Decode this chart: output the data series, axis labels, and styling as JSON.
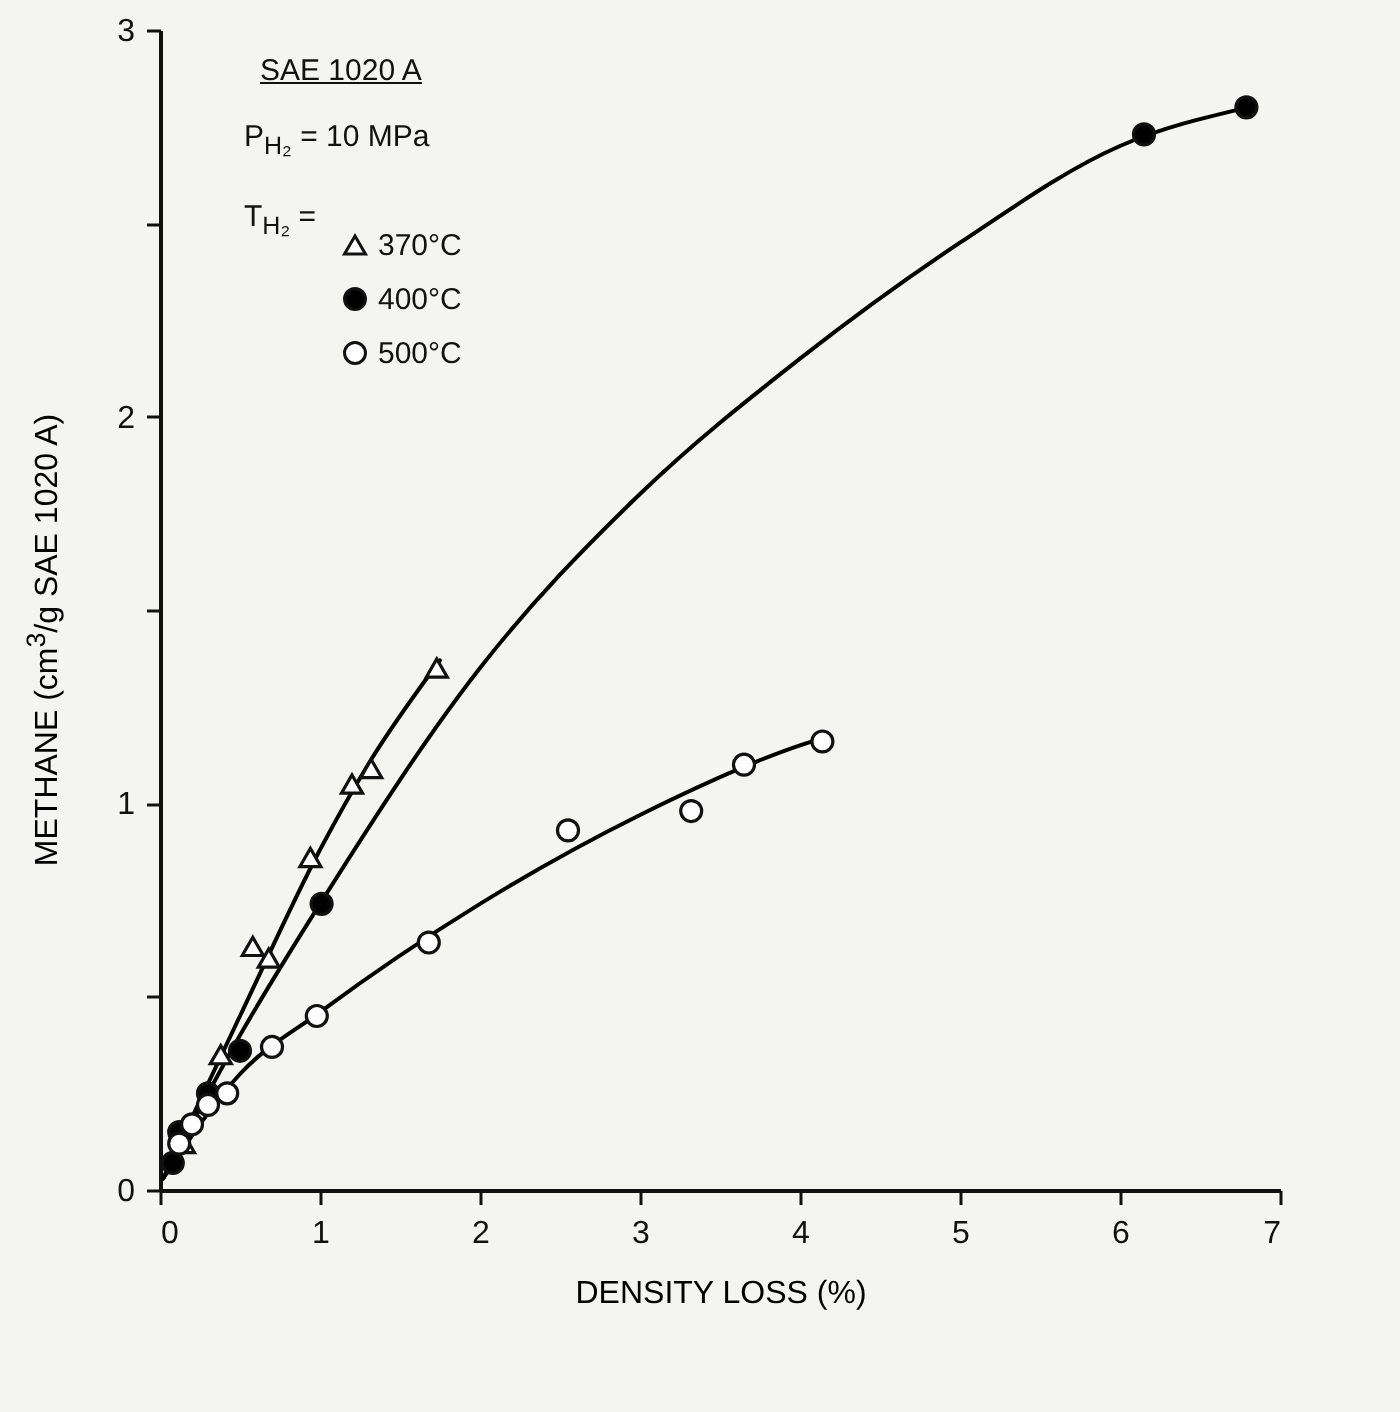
{
  "chart_data": {
    "type": "scatter",
    "xlabel": "DENSITY LOSS (%)",
    "ylabel": "METHANE (cm$^{3}$/g SAE 1020 A)",
    "legend_title": "SAE 1020 A",
    "annotations": [
      "P$_{H₂}$ = 10 MPa",
      "T$_{H₂}$ ="
    ],
    "xlim": [
      0,
      7
    ],
    "xticks": [
      0,
      1,
      2,
      3,
      4,
      5,
      6,
      7
    ],
    "ylim": [
      0,
      3
    ],
    "yticks": [
      0,
      {
        "value": 0.5,
        "label": null
      },
      1,
      {
        "value": 1.5,
        "label": null
      },
      2,
      {
        "value": 2.5,
        "label": null
      },
      3
    ],
    "legend": "top left",
    "grid": false,
    "series": [
      {
        "name": "370°C",
        "type": "scatter",
        "marker": "triangle",
        "color": "#ffffff",
        "x": [
          0.15,
          0.38,
          0.58,
          0.68,
          0.94,
          1.2,
          1.32,
          1.73
        ],
        "values": [
          0.12,
          0.35,
          0.63,
          0.6,
          0.86,
          1.05,
          1.09,
          1.35
        ]
      },
      {
        "name": "400°C",
        "type": "scatter",
        "marker": "circle",
        "color": "#000000",
        "x": [
          0.08,
          0.12,
          0.3,
          0.5,
          1.01,
          6.15,
          6.79
        ],
        "values": [
          0.07,
          0.15,
          0.25,
          0.36,
          0.74,
          2.73,
          2.8
        ]
      },
      {
        "name": "500°C",
        "type": "scatter",
        "marker": "circle",
        "color": "#ffffff",
        "x": [
          0.12,
          0.2,
          0.3,
          0.42,
          0.7,
          0.98,
          1.68,
          2.55,
          3.32,
          3.65,
          4.14
        ],
        "values": [
          0.12,
          0.17,
          0.22,
          0.25,
          0.37,
          0.45,
          0.64,
          0.93,
          0.98,
          1.1,
          1.16
        ]
      },
      {
        "type": "line",
        "marker": "none",
        "color": "#000000",
        "x": [
          0.02,
          0.5,
          1.0,
          1.3,
          1.75
        ],
        "values": [
          0.03,
          0.45,
          0.88,
          1.1,
          1.37
        ]
      },
      {
        "type": "line",
        "marker": "none",
        "color": "#000000",
        "x": [
          0.02,
          0.5,
          1.0,
          2.0,
          3.0,
          4.0,
          5.0,
          6.0,
          6.8
        ],
        "values": [
          0.03,
          0.4,
          0.74,
          1.35,
          1.8,
          2.15,
          2.45,
          2.7,
          2.8
        ]
      },
      {
        "type": "line",
        "marker": "none",
        "color": "#000000",
        "x": [
          0.02,
          0.5,
          1.0,
          2.0,
          3.0,
          4.0,
          4.15
        ],
        "values": [
          0.03,
          0.3,
          0.46,
          0.74,
          0.97,
          1.15,
          1.17
        ]
      }
    ]
  }
}
